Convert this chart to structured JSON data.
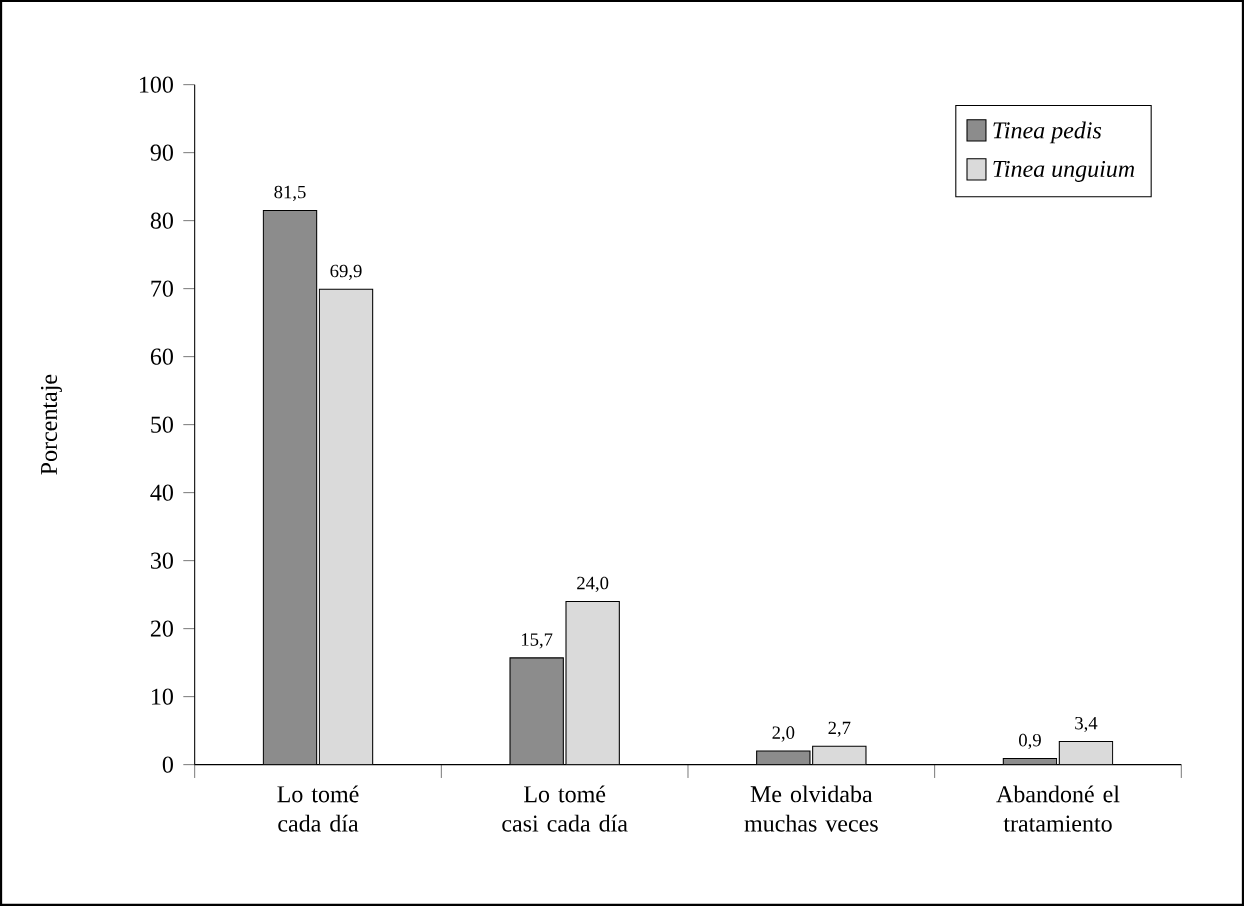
{
  "chart_data": {
    "type": "bar",
    "ylabel": "Porcentaje",
    "categories": [
      "Lo tomé cada día",
      "Lo tomé casi cada día",
      "Me olvidaba muchas veces",
      "Abandoné el tratamiento"
    ],
    "series": [
      {
        "name": "Tinea pedis",
        "color": "#8c8c8c",
        "values": [
          81.5,
          15.7,
          2.0,
          0.9
        ],
        "value_labels": [
          "81,5",
          "15,7",
          "2,0",
          "0,9"
        ]
      },
      {
        "name": "Tinea unguium",
        "color": "#dadada",
        "values": [
          69.9,
          24.0,
          2.7,
          3.4
        ],
        "value_labels": [
          "69,9",
          "24,0",
          "2,7",
          "3,4"
        ]
      }
    ],
    "ylim": [
      0,
      100
    ],
    "yticks": [
      0,
      10,
      20,
      30,
      40,
      50,
      60,
      70,
      80,
      90,
      100
    ],
    "grid": false,
    "legend": "top right"
  }
}
